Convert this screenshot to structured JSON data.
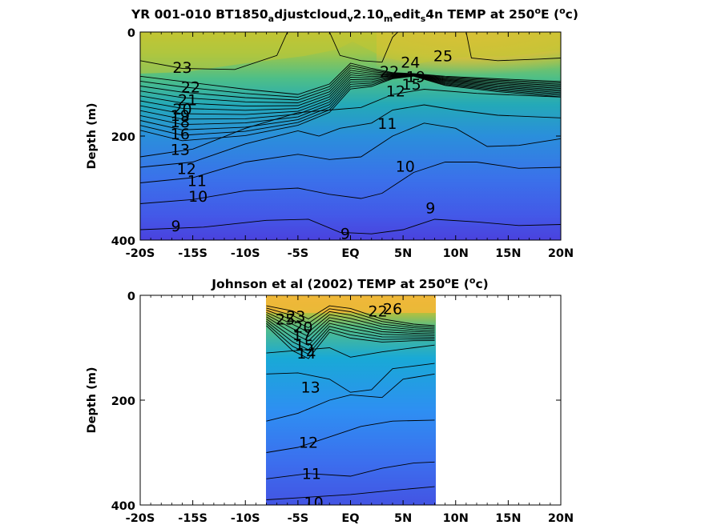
{
  "chart_data": [
    {
      "type": "contour",
      "title_parts": [
        "YR 001-010 BT1850",
        "a",
        "djustcloud",
        "v",
        "2.10",
        "m",
        "edit",
        "s",
        "4n TEMP at 250",
        "o",
        "E (",
        "o",
        "c)"
      ],
      "ylabel": "Depth (m)",
      "xlim": [
        -20,
        20
      ],
      "ylim": [
        400,
        0
      ],
      "xticks": [
        -20,
        -15,
        -10,
        -5,
        0,
        5,
        10,
        15,
        20
      ],
      "xtick_labels": [
        "-20S",
        "-15S",
        "-10S",
        "-5S",
        "EQ",
        "5N",
        "10N",
        "15N",
        "20N"
      ],
      "yticks": [
        0,
        200,
        400
      ],
      "ytick_labels": [
        "0",
        "200",
        "400"
      ],
      "data_extent": [
        -20,
        20
      ],
      "contour_labels": [
        {
          "text": "23",
          "x": -16,
          "y": 68
        },
        {
          "text": "22",
          "x": -15.2,
          "y": 105
        },
        {
          "text": "21",
          "x": -15.5,
          "y": 130
        },
        {
          "text": "20",
          "x": -16,
          "y": 148
        },
        {
          "text": "19",
          "x": -16.2,
          "y": 160
        },
        {
          "text": "18",
          "x": -16.2,
          "y": 172
        },
        {
          "text": "16",
          "x": -16.2,
          "y": 195
        },
        {
          "text": "13",
          "x": -16.2,
          "y": 225
        },
        {
          "text": "12",
          "x": -15.6,
          "y": 262
        },
        {
          "text": "11",
          "x": -14.6,
          "y": 285
        },
        {
          "text": "10",
          "x": -14.5,
          "y": 315
        },
        {
          "text": "9",
          "x": -16.6,
          "y": 372
        },
        {
          "text": "9",
          "x": -0.5,
          "y": 387
        },
        {
          "text": "9",
          "x": 7.6,
          "y": 338
        },
        {
          "text": "10",
          "x": 5.2,
          "y": 258
        },
        {
          "text": "11",
          "x": 3.5,
          "y": 175
        },
        {
          "text": "12",
          "x": 4.3,
          "y": 113
        },
        {
          "text": "22",
          "x": 3.7,
          "y": 75
        },
        {
          "text": "24",
          "x": 5.7,
          "y": 58
        },
        {
          "text": "25",
          "x": 8.8,
          "y": 45
        },
        {
          "text": "15",
          "x": 5.8,
          "y": 100
        },
        {
          "text": "19",
          "x": 6.2,
          "y": 85
        }
      ],
      "isotherms_mean_depth_m": {
        "9": 380,
        "10": 300,
        "11": 245,
        "12": 205
      }
    },
    {
      "type": "contour",
      "title_parts": [
        "Johnson et al (2002) TEMP at 250",
        "o",
        "E (",
        "o",
        "c)"
      ],
      "ylabel": "Depth (m)",
      "xlim": [
        -20,
        20
      ],
      "ylim": [
        400,
        0
      ],
      "xticks": [
        -20,
        -15,
        -10,
        -5,
        0,
        5,
        10,
        15,
        20
      ],
      "xtick_labels": [
        "-20S",
        "-15S",
        "-10S",
        "-5S",
        "EQ",
        "5N",
        "10N",
        "15N",
        "20N"
      ],
      "yticks": [
        0,
        200,
        400
      ],
      "ytick_labels": [
        "0",
        "200",
        "400"
      ],
      "data_extent": [
        -8,
        8
      ],
      "contour_labels": [
        {
          "text": "25",
          "x": -6.2,
          "y": 45
        },
        {
          "text": "23",
          "x": -5.2,
          "y": 40
        },
        {
          "text": "20",
          "x": -4.5,
          "y": 60
        },
        {
          "text": "17",
          "x": -4.6,
          "y": 75
        },
        {
          "text": "15",
          "x": -4.4,
          "y": 95
        },
        {
          "text": "14",
          "x": -4.2,
          "y": 110
        },
        {
          "text": "13",
          "x": -3.8,
          "y": 175
        },
        {
          "text": "12",
          "x": -4.0,
          "y": 280
        },
        {
          "text": "11",
          "x": -3.7,
          "y": 340
        },
        {
          "text": "10",
          "x": -3.5,
          "y": 395
        },
        {
          "text": "22",
          "x": 2.6,
          "y": 30
        },
        {
          "text": "26",
          "x": 4.0,
          "y": 25
        }
      ]
    }
  ]
}
